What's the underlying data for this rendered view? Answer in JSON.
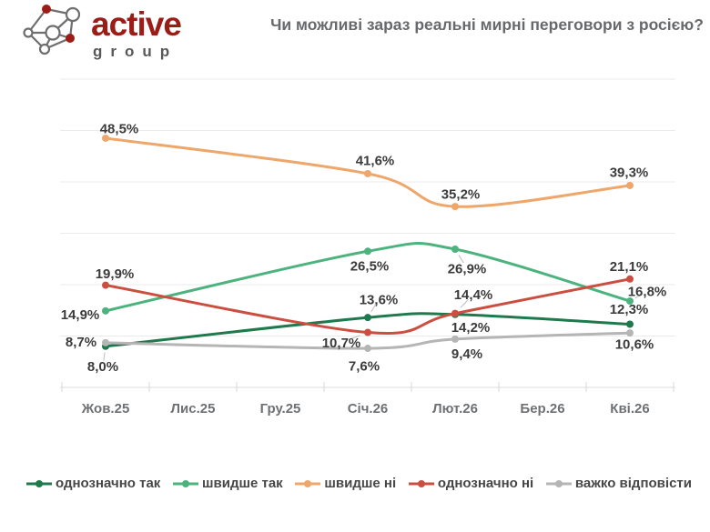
{
  "brand": {
    "name_primary": "active",
    "name_secondary": "group"
  },
  "title": "Чи можливі зараз реальні мирні переговори з росією?",
  "colors": {
    "brand_red": "#9c1d17",
    "logo_gray": "#6e6e6e",
    "grid": "#ebebeb",
    "axis": "#dedede",
    "tick": "#d8d8d8",
    "leader": "#bdbdbd"
  },
  "chart_data": {
    "type": "line",
    "title": "Чи можливі зараз реальні мирні переговори з росією?",
    "categories": [
      "Жов.25",
      "Лис.25",
      "Гру.25",
      "Січ.26",
      "Лют.26",
      "Бер.26",
      "Кві.26"
    ],
    "ylim": [
      0,
      60
    ],
    "grid": true,
    "grid_step": 10,
    "legend_position": "bottom",
    "value_suffix": "%",
    "decimal_separator": ",",
    "series": [
      {
        "name": "однозначно так",
        "color": "#1e7a4c",
        "values": [
          8.0,
          null,
          null,
          13.6,
          14.2,
          null,
          12.3
        ],
        "label_offsets": [
          [
            -3,
            22
          ],
          [
            12,
            -20
          ],
          [
            17,
            14
          ],
          [
            -1,
            -17
          ]
        ],
        "leaders": [
          true,
          true,
          false,
          false
        ]
      },
      {
        "name": "швидше так",
        "color": "#4db37e",
        "values": [
          14.9,
          null,
          null,
          26.5,
          26.9,
          null,
          16.8
        ],
        "label_offsets": [
          [
            -28,
            4
          ],
          [
            2,
            16
          ],
          [
            13,
            21
          ],
          [
            19,
            -11
          ]
        ],
        "leaders": [
          false,
          false,
          true,
          true
        ]
      },
      {
        "name": "швидше ні",
        "color": "#efa66a",
        "values": [
          48.5,
          null,
          null,
          41.6,
          35.2,
          null,
          39.3
        ],
        "label_offsets": [
          [
            15,
            -11
          ],
          [
            8,
            -15
          ],
          [
            6,
            -14
          ],
          [
            -1,
            -15
          ]
        ],
        "leaders": [
          false,
          false,
          false,
          false
        ]
      },
      {
        "name": "однозначно ні",
        "color": "#cb4f41",
        "values": [
          19.9,
          null,
          null,
          10.7,
          14.4,
          null,
          21.1
        ],
        "label_offsets": [
          [
            10,
            -13
          ],
          [
            -29,
            11
          ],
          [
            20,
            -21
          ],
          [
            -1,
            -14
          ]
        ],
        "leaders": [
          false,
          true,
          true,
          false
        ]
      },
      {
        "name": "важко відповісти",
        "color": "#b5b5b5",
        "values": [
          8.7,
          null,
          null,
          7.6,
          9.4,
          null,
          10.6
        ],
        "label_offsets": [
          [
            -27,
            -1
          ],
          [
            -4,
            19
          ],
          [
            13,
            16
          ],
          [
            5,
            12
          ]
        ],
        "leaders": [
          false,
          false,
          false,
          false
        ]
      }
    ]
  }
}
